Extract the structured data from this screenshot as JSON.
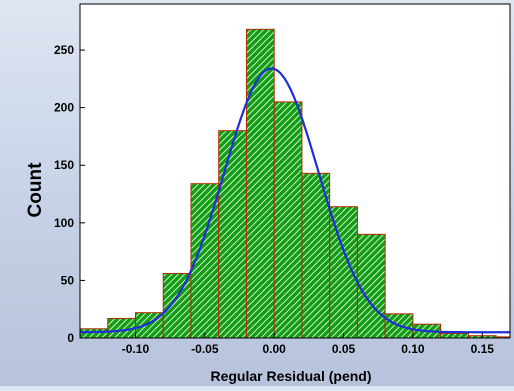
{
  "chart_data": {
    "type": "bar",
    "title": "",
    "xlabel": "Regular Residual (pend)",
    "ylabel": "Count",
    "xlim": [
      -0.14,
      0.17
    ],
    "ylim": [
      0,
      290
    ],
    "x_ticks": [
      "-0.10",
      "-0.05",
      "0.00",
      "0.05",
      "0.10",
      "0.15"
    ],
    "x_tick_values": [
      -0.1,
      -0.05,
      0.0,
      0.05,
      0.1,
      0.15
    ],
    "y_ticks": [
      "0",
      "50",
      "100",
      "150",
      "200",
      "250"
    ],
    "y_tick_values": [
      0,
      50,
      100,
      150,
      200,
      250
    ],
    "bin_edges": [
      -0.14,
      -0.12,
      -0.1,
      -0.08,
      -0.06,
      -0.04,
      -0.02,
      0.0,
      0.02,
      0.04,
      0.06,
      0.08,
      0.1,
      0.12,
      0.14,
      0.16,
      0.18
    ],
    "counts": [
      8,
      17,
      22,
      56,
      134,
      180,
      268,
      205,
      143,
      114,
      90,
      21,
      12,
      4,
      2,
      1
    ],
    "bar_fill": "#129e12",
    "bar_hatch": "#ffffff",
    "bar_outline": "#b32a00",
    "fit_curve": {
      "type": "normal",
      "color": "#1f2fd6",
      "mean": -0.002,
      "sd": 0.034,
      "peak": 234,
      "baseline": 5
    },
    "grid": false,
    "legend": "none"
  }
}
